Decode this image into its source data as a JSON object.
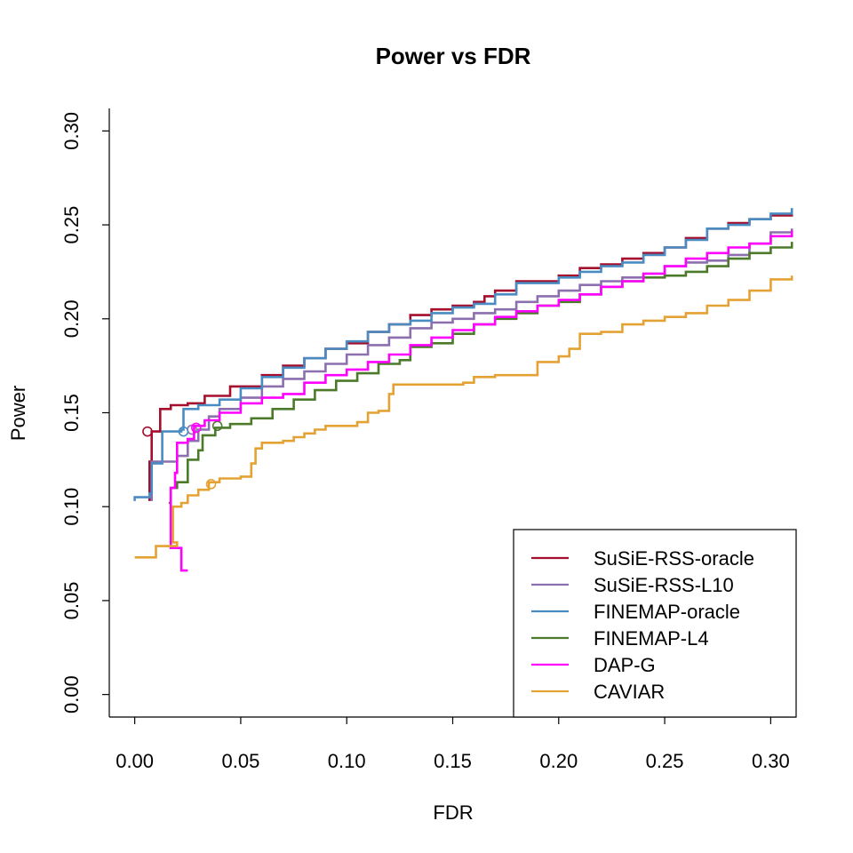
{
  "chart_data": {
    "type": "line",
    "title": "Power vs FDR",
    "xlabel": "FDR",
    "ylabel": "Power",
    "xlim": [
      -0.012,
      0.312
    ],
    "ylim": [
      -0.012,
      0.312
    ],
    "x_ticks": [
      "0.00",
      "0.05",
      "0.10",
      "0.15",
      "0.20",
      "0.25",
      "0.30"
    ],
    "y_ticks": [
      "0.00",
      "0.05",
      "0.10",
      "0.15",
      "0.20",
      "0.25",
      "0.30"
    ],
    "grid": false,
    "legend_position": "bottom-right",
    "series": [
      {
        "name": "SuSiE-RSS-oracle",
        "color": "#A50F2D",
        "marker": [
          0.006,
          0.14
        ],
        "points": [
          [
            0.007,
            0.103
          ],
          [
            0.007,
            0.124
          ],
          [
            0.008,
            0.14
          ],
          [
            0.01,
            0.14
          ],
          [
            0.012,
            0.152
          ],
          [
            0.017,
            0.154
          ],
          [
            0.025,
            0.155
          ],
          [
            0.033,
            0.159
          ],
          [
            0.045,
            0.16
          ],
          [
            0.045,
            0.164
          ],
          [
            0.06,
            0.17
          ],
          [
            0.07,
            0.175
          ],
          [
            0.08,
            0.179
          ],
          [
            0.09,
            0.184
          ],
          [
            0.1,
            0.187
          ],
          [
            0.11,
            0.193
          ],
          [
            0.12,
            0.197
          ],
          [
            0.13,
            0.202
          ],
          [
            0.14,
            0.205
          ],
          [
            0.15,
            0.207
          ],
          [
            0.16,
            0.209
          ],
          [
            0.165,
            0.212
          ],
          [
            0.17,
            0.215
          ],
          [
            0.18,
            0.22
          ],
          [
            0.2,
            0.223
          ],
          [
            0.21,
            0.227
          ],
          [
            0.22,
            0.229
          ],
          [
            0.23,
            0.232
          ],
          [
            0.24,
            0.235
          ],
          [
            0.25,
            0.238
          ],
          [
            0.26,
            0.243
          ],
          [
            0.27,
            0.248
          ],
          [
            0.28,
            0.251
          ],
          [
            0.29,
            0.253
          ],
          [
            0.3,
            0.255
          ],
          [
            0.31,
            0.258
          ]
        ]
      },
      {
        "name": "SuSiE-RSS-L10",
        "color": "#8B6FAE",
        "marker": [
          0.027,
          0.141
        ],
        "points": [
          [
            0.008,
            0.103
          ],
          [
            0.008,
            0.124
          ],
          [
            0.012,
            0.124
          ],
          [
            0.02,
            0.127
          ],
          [
            0.025,
            0.135
          ],
          [
            0.03,
            0.141
          ],
          [
            0.035,
            0.148
          ],
          [
            0.04,
            0.152
          ],
          [
            0.05,
            0.158
          ],
          [
            0.06,
            0.164
          ],
          [
            0.07,
            0.168
          ],
          [
            0.08,
            0.172
          ],
          [
            0.09,
            0.176
          ],
          [
            0.1,
            0.181
          ],
          [
            0.11,
            0.186
          ],
          [
            0.12,
            0.19
          ],
          [
            0.13,
            0.195
          ],
          [
            0.14,
            0.198
          ],
          [
            0.15,
            0.2
          ],
          [
            0.16,
            0.203
          ],
          [
            0.17,
            0.205
          ],
          [
            0.18,
            0.209
          ],
          [
            0.19,
            0.212
          ],
          [
            0.2,
            0.215
          ],
          [
            0.21,
            0.218
          ],
          [
            0.22,
            0.22
          ],
          [
            0.23,
            0.222
          ],
          [
            0.24,
            0.224
          ],
          [
            0.25,
            0.228
          ],
          [
            0.26,
            0.23
          ],
          [
            0.27,
            0.231
          ],
          [
            0.28,
            0.234
          ],
          [
            0.29,
            0.24
          ],
          [
            0.3,
            0.246
          ],
          [
            0.31,
            0.248
          ]
        ]
      },
      {
        "name": "FINEMAP-oracle",
        "color": "#4A8CC2",
        "marker": [
          0.023,
          0.14
        ],
        "points": [
          [
            0.0,
            0.103
          ],
          [
            0.0,
            0.105
          ],
          [
            0.007,
            0.107
          ],
          [
            0.008,
            0.123
          ],
          [
            0.013,
            0.125
          ],
          [
            0.013,
            0.14
          ],
          [
            0.018,
            0.14
          ],
          [
            0.022,
            0.141
          ],
          [
            0.023,
            0.152
          ],
          [
            0.03,
            0.154
          ],
          [
            0.04,
            0.157
          ],
          [
            0.05,
            0.163
          ],
          [
            0.06,
            0.169
          ],
          [
            0.07,
            0.174
          ],
          [
            0.08,
            0.179
          ],
          [
            0.09,
            0.184
          ],
          [
            0.1,
            0.188
          ],
          [
            0.11,
            0.193
          ],
          [
            0.12,
            0.197
          ],
          [
            0.13,
            0.199
          ],
          [
            0.14,
            0.203
          ],
          [
            0.15,
            0.206
          ],
          [
            0.16,
            0.208
          ],
          [
            0.17,
            0.213
          ],
          [
            0.18,
            0.219
          ],
          [
            0.2,
            0.222
          ],
          [
            0.21,
            0.225
          ],
          [
            0.22,
            0.228
          ],
          [
            0.23,
            0.23
          ],
          [
            0.24,
            0.234
          ],
          [
            0.25,
            0.238
          ],
          [
            0.26,
            0.242
          ],
          [
            0.27,
            0.248
          ],
          [
            0.28,
            0.25
          ],
          [
            0.29,
            0.253
          ],
          [
            0.3,
            0.256
          ],
          [
            0.31,
            0.259
          ]
        ]
      },
      {
        "name": "FINEMAP-L4",
        "color": "#4B7A2B",
        "marker": [
          0.039,
          0.143
        ],
        "points": [
          [
            0.016,
            0.102
          ],
          [
            0.017,
            0.11
          ],
          [
            0.02,
            0.113
          ],
          [
            0.025,
            0.115
          ],
          [
            0.025,
            0.125
          ],
          [
            0.03,
            0.13
          ],
          [
            0.032,
            0.138
          ],
          [
            0.038,
            0.142
          ],
          [
            0.045,
            0.144
          ],
          [
            0.055,
            0.147
          ],
          [
            0.065,
            0.152
          ],
          [
            0.075,
            0.157
          ],
          [
            0.085,
            0.162
          ],
          [
            0.095,
            0.167
          ],
          [
            0.105,
            0.171
          ],
          [
            0.115,
            0.176
          ],
          [
            0.125,
            0.178
          ],
          [
            0.13,
            0.185
          ],
          [
            0.14,
            0.187
          ],
          [
            0.15,
            0.192
          ],
          [
            0.16,
            0.197
          ],
          [
            0.17,
            0.2
          ],
          [
            0.18,
            0.203
          ],
          [
            0.19,
            0.207
          ],
          [
            0.2,
            0.209
          ],
          [
            0.21,
            0.213
          ],
          [
            0.22,
            0.217
          ],
          [
            0.23,
            0.22
          ],
          [
            0.24,
            0.222
          ],
          [
            0.25,
            0.223
          ],
          [
            0.26,
            0.225
          ],
          [
            0.27,
            0.228
          ],
          [
            0.28,
            0.232
          ],
          [
            0.29,
            0.235
          ],
          [
            0.3,
            0.238
          ],
          [
            0.31,
            0.241
          ]
        ]
      },
      {
        "name": "DAP-G",
        "color": "#FF00FF",
        "marker": [
          0.029,
          0.142
        ],
        "points": [
          [
            0.025,
            0.066
          ],
          [
            0.022,
            0.078
          ],
          [
            0.017,
            0.1
          ],
          [
            0.017,
            0.11
          ],
          [
            0.019,
            0.118
          ],
          [
            0.02,
            0.134
          ],
          [
            0.025,
            0.136
          ],
          [
            0.028,
            0.143
          ],
          [
            0.033,
            0.146
          ],
          [
            0.04,
            0.15
          ],
          [
            0.05,
            0.155
          ],
          [
            0.06,
            0.158
          ],
          [
            0.07,
            0.16
          ],
          [
            0.08,
            0.166
          ],
          [
            0.09,
            0.17
          ],
          [
            0.1,
            0.173
          ],
          [
            0.11,
            0.177
          ],
          [
            0.12,
            0.181
          ],
          [
            0.13,
            0.186
          ],
          [
            0.14,
            0.19
          ],
          [
            0.15,
            0.194
          ],
          [
            0.16,
            0.197
          ],
          [
            0.17,
            0.201
          ],
          [
            0.18,
            0.204
          ],
          [
            0.19,
            0.207
          ],
          [
            0.2,
            0.21
          ],
          [
            0.21,
            0.213
          ],
          [
            0.22,
            0.217
          ],
          [
            0.23,
            0.22
          ],
          [
            0.24,
            0.224
          ],
          [
            0.25,
            0.228
          ],
          [
            0.26,
            0.232
          ],
          [
            0.27,
            0.235
          ],
          [
            0.28,
            0.238
          ],
          [
            0.29,
            0.24
          ],
          [
            0.3,
            0.244
          ],
          [
            0.31,
            0.247
          ]
        ]
      },
      {
        "name": "CAVIAR",
        "color": "#E5A234",
        "marker": [
          0.036,
          0.112
        ],
        "points": [
          [
            0.0,
            0.073
          ],
          [
            0.01,
            0.079
          ],
          [
            0.02,
            0.081
          ],
          [
            0.018,
            0.09
          ],
          [
            0.018,
            0.1
          ],
          [
            0.022,
            0.102
          ],
          [
            0.025,
            0.106
          ],
          [
            0.03,
            0.109
          ],
          [
            0.035,
            0.113
          ],
          [
            0.04,
            0.115
          ],
          [
            0.05,
            0.116
          ],
          [
            0.055,
            0.123
          ],
          [
            0.057,
            0.127
          ],
          [
            0.057,
            0.131
          ],
          [
            0.06,
            0.134
          ],
          [
            0.07,
            0.135
          ],
          [
            0.075,
            0.137
          ],
          [
            0.08,
            0.139
          ],
          [
            0.085,
            0.141
          ],
          [
            0.09,
            0.143
          ],
          [
            0.1,
            0.143
          ],
          [
            0.105,
            0.145
          ],
          [
            0.11,
            0.15
          ],
          [
            0.115,
            0.151
          ],
          [
            0.12,
            0.16
          ],
          [
            0.122,
            0.165
          ],
          [
            0.14,
            0.165
          ],
          [
            0.155,
            0.166
          ],
          [
            0.16,
            0.169
          ],
          [
            0.17,
            0.17
          ],
          [
            0.19,
            0.171
          ],
          [
            0.19,
            0.177
          ],
          [
            0.2,
            0.18
          ],
          [
            0.205,
            0.184
          ],
          [
            0.21,
            0.192
          ],
          [
            0.22,
            0.193
          ],
          [
            0.23,
            0.197
          ],
          [
            0.24,
            0.199
          ],
          [
            0.25,
            0.201
          ],
          [
            0.26,
            0.203
          ],
          [
            0.27,
            0.207
          ],
          [
            0.28,
            0.21
          ],
          [
            0.29,
            0.215
          ],
          [
            0.3,
            0.221
          ],
          [
            0.31,
            0.223
          ]
        ]
      }
    ]
  }
}
